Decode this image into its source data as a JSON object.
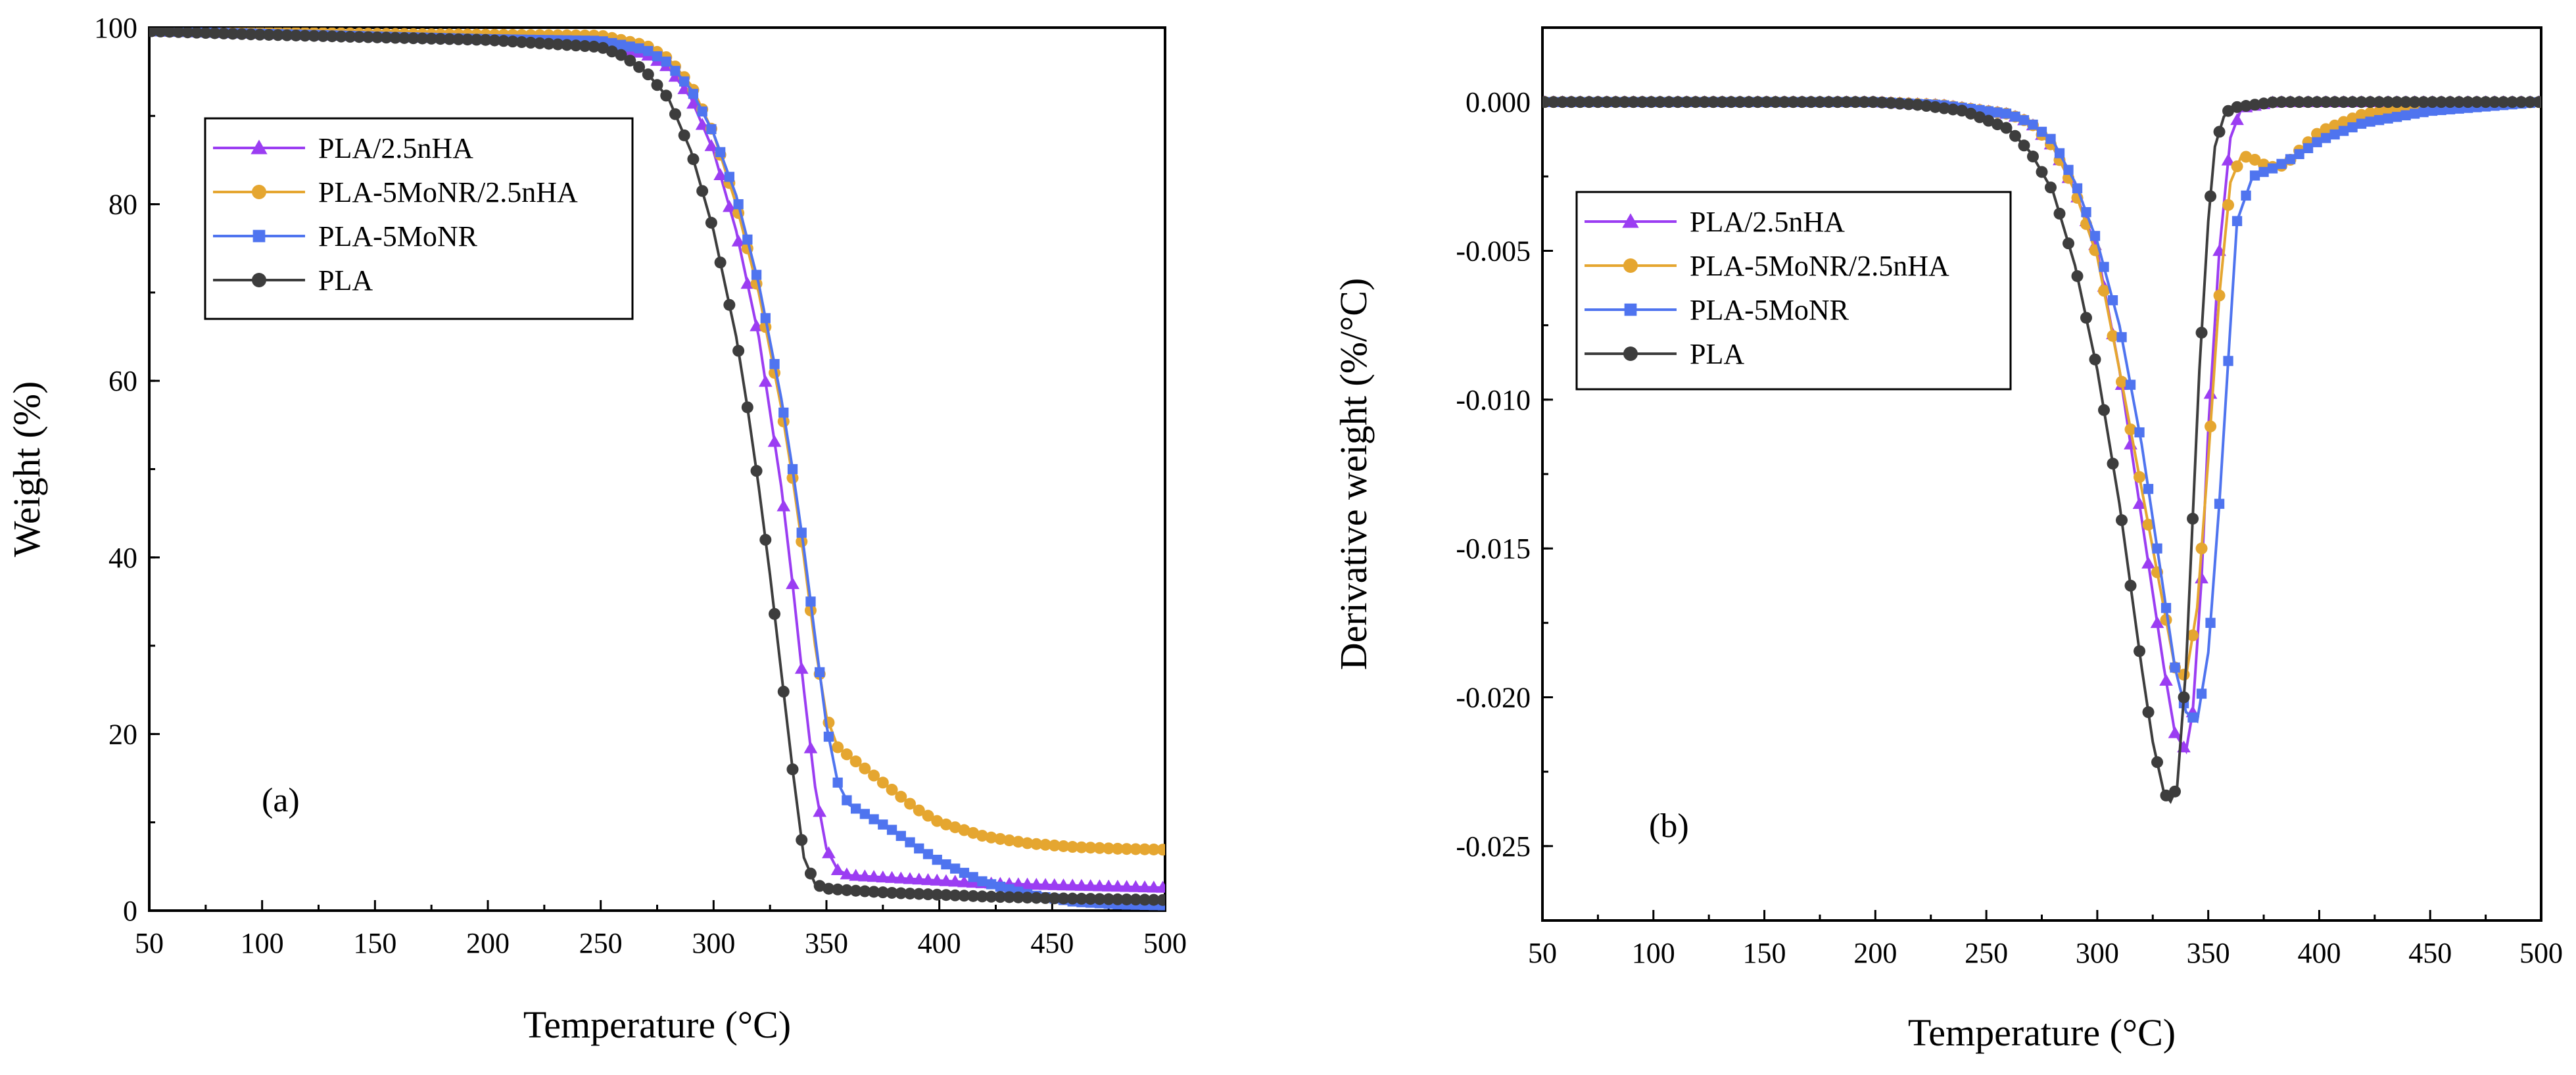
{
  "figure": {
    "panels": [
      "(a)",
      "(b)"
    ]
  },
  "colors": {
    "PLA/2.5nHA": "#9b3df2",
    "PLA-5MoNR/2.5nHA": "#e5a630",
    "PLA-5MoNR": "#4f74ef",
    "PLA": "#3d3d3d"
  },
  "chart_data": [
    {
      "type": "line",
      "panel_label": "(a)",
      "xlabel": "Temperature (°C)",
      "ylabel": "Weight (%)",
      "xlim": [
        50,
        500
      ],
      "ylim": [
        0,
        100
      ],
      "xticks": [
        50,
        100,
        150,
        200,
        250,
        300,
        350,
        400,
        450,
        500
      ],
      "yticks": [
        0,
        20,
        40,
        60,
        80,
        100
      ],
      "grid": false,
      "legend_position": "top-left",
      "markers": true,
      "series": [
        {
          "name": "PLA/2.5nHA",
          "color": "#9b3df2",
          "marker": "triangle",
          "points": [
            [
              50,
              99.6
            ],
            [
              100,
              99.3
            ],
            [
              150,
              99
            ],
            [
              200,
              98.7
            ],
            [
              250,
              98.2
            ],
            [
              270,
              97
            ],
            [
              280,
              95.5
            ],
            [
              290,
              92
            ],
            [
              300,
              86
            ],
            [
              310,
              77
            ],
            [
              320,
              65
            ],
            [
              330,
              48
            ],
            [
              335,
              37
            ],
            [
              340,
              25
            ],
            [
              345,
              14
            ],
            [
              350,
              7
            ],
            [
              355,
              4.6
            ],
            [
              360,
              4
            ],
            [
              380,
              3.7
            ],
            [
              400,
              3.4
            ],
            [
              420,
              3.1
            ],
            [
              450,
              2.9
            ],
            [
              500,
              2.6
            ]
          ]
        },
        {
          "name": "PLA-5MoNR/2.5nHA",
          "color": "#e5a630",
          "marker": "circle",
          "points": [
            [
              50,
              99.7
            ],
            [
              100,
              99.5
            ],
            [
              150,
              99.3
            ],
            [
              200,
              99.2
            ],
            [
              250,
              99.1
            ],
            [
              270,
              98
            ],
            [
              280,
              96.5
            ],
            [
              290,
              93.5
            ],
            [
              300,
              88
            ],
            [
              310,
              80
            ],
            [
              320,
              70
            ],
            [
              330,
              57
            ],
            [
              335,
              49
            ],
            [
              340,
              40
            ],
            [
              345,
              30
            ],
            [
              350,
              22
            ],
            [
              355,
              18.5
            ],
            [
              360,
              17.5
            ],
            [
              370,
              15.5
            ],
            [
              380,
              13.5
            ],
            [
              390,
              11.5
            ],
            [
              400,
              10
            ],
            [
              420,
              8.4
            ],
            [
              440,
              7.6
            ],
            [
              460,
              7.2
            ],
            [
              480,
              7
            ],
            [
              500,
              6.9
            ]
          ]
        },
        {
          "name": "PLA-5MoNR",
          "color": "#4f74ef",
          "marker": "square",
          "points": [
            [
              50,
              99.6
            ],
            [
              100,
              99.3
            ],
            [
              150,
              99
            ],
            [
              200,
              98.7
            ],
            [
              250,
              98.5
            ],
            [
              270,
              97.5
            ],
            [
              280,
              96
            ],
            [
              290,
              93
            ],
            [
              300,
              88
            ],
            [
              310,
              81
            ],
            [
              320,
              71
            ],
            [
              330,
              58
            ],
            [
              335,
              50
            ],
            [
              340,
              41
            ],
            [
              345,
              31
            ],
            [
              350,
              21
            ],
            [
              355,
              14.5
            ],
            [
              360,
              12
            ],
            [
              370,
              10.5
            ],
            [
              380,
              9
            ],
            [
              390,
              7.2
            ],
            [
              400,
              5.6
            ],
            [
              420,
              3.2
            ],
            [
              440,
              1.8
            ],
            [
              460,
              1
            ],
            [
              480,
              0.7
            ],
            [
              500,
              0.6
            ]
          ]
        },
        {
          "name": "PLA",
          "color": "#3d3d3d",
          "marker": "circle",
          "points": [
            [
              50,
              99.6
            ],
            [
              100,
              99.2
            ],
            [
              150,
              98.9
            ],
            [
              200,
              98.6
            ],
            [
              250,
              97.8
            ],
            [
              260,
              96.8
            ],
            [
              270,
              95
            ],
            [
              280,
              92
            ],
            [
              290,
              86
            ],
            [
              300,
              77
            ],
            [
              310,
              65
            ],
            [
              315,
              57
            ],
            [
              320,
              48
            ],
            [
              325,
              38
            ],
            [
              330,
              27
            ],
            [
              335,
              16
            ],
            [
              340,
              6
            ],
            [
              345,
              3
            ],
            [
              350,
              2.5
            ],
            [
              360,
              2.3
            ],
            [
              380,
              2
            ],
            [
              400,
              1.8
            ],
            [
              420,
              1.6
            ],
            [
              450,
              1.4
            ],
            [
              500,
              1.2
            ]
          ]
        }
      ]
    },
    {
      "type": "line",
      "panel_label": "(b)",
      "xlabel": "Temperature (°C)",
      "ylabel": "Derivative weight (%/°C)",
      "xlim": [
        50,
        500
      ],
      "ylim": [
        -0.0275,
        0.0025
      ],
      "xticks": [
        50,
        100,
        150,
        200,
        250,
        300,
        350,
        400,
        450,
        500
      ],
      "yticks": [
        0.0,
        -0.005,
        -0.01,
        -0.015,
        -0.02,
        -0.025
      ],
      "ytick_labels": [
        "0.000",
        "-0.005",
        "-0.010",
        "-0.015",
        "-0.020",
        "-0.025"
      ],
      "grid": false,
      "legend_position": "top-left",
      "markers": true,
      "series": [
        {
          "name": "PLA/2.5nHA",
          "color": "#9b3df2",
          "marker": "triangle",
          "points": [
            [
              50,
              0
            ],
            [
              100,
              0
            ],
            [
              150,
              0
            ],
            [
              200,
              0
            ],
            [
              230,
              -0.0001
            ],
            [
              260,
              -0.0004
            ],
            [
              270,
              -0.0007
            ],
            [
              280,
              -0.0015
            ],
            [
              290,
              -0.003
            ],
            [
              300,
              -0.005
            ],
            [
              310,
              -0.009
            ],
            [
              320,
              -0.014
            ],
            [
              330,
              -0.019
            ],
            [
              335,
              -0.0212
            ],
            [
              340,
              -0.0218
            ],
            [
              343,
              -0.0205
            ],
            [
              347,
              -0.016
            ],
            [
              350,
              -0.011
            ],
            [
              355,
              -0.005
            ],
            [
              360,
              -0.0012
            ],
            [
              365,
              -0.0002
            ],
            [
              380,
              0
            ],
            [
              420,
              0
            ],
            [
              500,
              0
            ]
          ]
        },
        {
          "name": "PLA-5MoNR/2.5nHA",
          "color": "#e5a630",
          "marker": "circle",
          "points": [
            [
              50,
              0
            ],
            [
              100,
              0
            ],
            [
              150,
              0
            ],
            [
              200,
              0
            ],
            [
              230,
              -0.0001
            ],
            [
              260,
              -0.0004
            ],
            [
              270,
              -0.0007
            ],
            [
              280,
              -0.0015
            ],
            [
              290,
              -0.003
            ],
            [
              300,
              -0.0052
            ],
            [
              310,
              -0.009
            ],
            [
              320,
              -0.013
            ],
            [
              330,
              -0.017
            ],
            [
              335,
              -0.019
            ],
            [
              340,
              -0.0193
            ],
            [
              345,
              -0.017
            ],
            [
              350,
              -0.012
            ],
            [
              355,
              -0.0065
            ],
            [
              360,
              -0.0027
            ],
            [
              365,
              -0.0018
            ],
            [
              370,
              -0.0019
            ],
            [
              375,
              -0.0021
            ],
            [
              380,
              -0.0022
            ],
            [
              385,
              -0.0021
            ],
            [
              390,
              -0.0017
            ],
            [
              400,
              -0.001
            ],
            [
              420,
              -0.0004
            ],
            [
              450,
              -0.0001
            ],
            [
              500,
              0
            ]
          ]
        },
        {
          "name": "PLA-5MoNR",
          "color": "#4f74ef",
          "marker": "square",
          "points": [
            [
              50,
              0
            ],
            [
              100,
              0
            ],
            [
              150,
              0
            ],
            [
              200,
              0
            ],
            [
              230,
              -0.0001
            ],
            [
              260,
              -0.0004
            ],
            [
              270,
              -0.0007
            ],
            [
              280,
              -0.0013
            ],
            [
              290,
              -0.0027
            ],
            [
              300,
              -0.0047
            ],
            [
              310,
              -0.0075
            ],
            [
              320,
              -0.0115
            ],
            [
              330,
              -0.0165
            ],
            [
              335,
              -0.019
            ],
            [
              340,
              -0.0205
            ],
            [
              345,
              -0.0208
            ],
            [
              350,
              -0.0185
            ],
            [
              355,
              -0.0135
            ],
            [
              360,
              -0.0075
            ],
            [
              363,
              -0.004
            ],
            [
              370,
              -0.0025
            ],
            [
              380,
              -0.0022
            ],
            [
              390,
              -0.0018
            ],
            [
              400,
              -0.0013
            ],
            [
              420,
              -0.0007
            ],
            [
              450,
              -0.0003
            ],
            [
              500,
              0
            ]
          ]
        },
        {
          "name": "PLA",
          "color": "#3d3d3d",
          "marker": "circle",
          "points": [
            [
              50,
              0
            ],
            [
              100,
              0
            ],
            [
              150,
              0
            ],
            [
              200,
              0
            ],
            [
              220,
              -0.0001
            ],
            [
              240,
              -0.0003
            ],
            [
              260,
              -0.0009
            ],
            [
              270,
              -0.0017
            ],
            [
              280,
              -0.003
            ],
            [
              290,
              -0.0055
            ],
            [
              300,
              -0.009
            ],
            [
              310,
              -0.0135
            ],
            [
              320,
              -0.019
            ],
            [
              325,
              -0.0215
            ],
            [
              330,
              -0.0232
            ],
            [
              333,
              -0.0235
            ],
            [
              336,
              -0.023
            ],
            [
              340,
              -0.019
            ],
            [
              343,
              -0.014
            ],
            [
              346,
              -0.009
            ],
            [
              350,
              -0.004
            ],
            [
              353,
              -0.0015
            ],
            [
              357,
              -0.0005
            ],
            [
              360,
              -0.0002
            ],
            [
              380,
              0
            ],
            [
              500,
              0
            ]
          ]
        }
      ]
    }
  ]
}
